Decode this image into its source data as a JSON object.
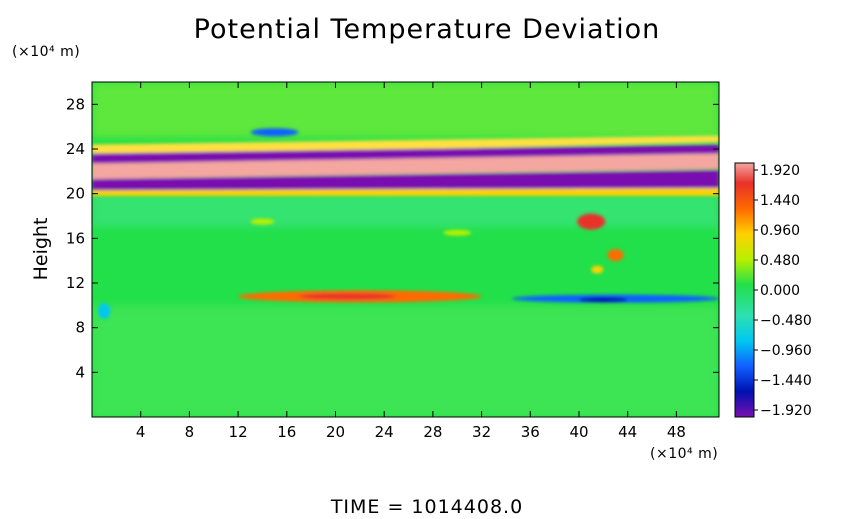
{
  "chart_data": {
    "type": "heatmap",
    "title": "Potential Temperature Deviation",
    "ylabel": "Height",
    "xlabel": "",
    "x_unit": "(×10⁴ m)",
    "y_unit": "(×10⁴ m)",
    "xlim": [
      0,
      51.5
    ],
    "ylim": [
      0,
      30
    ],
    "x_ticks": [
      "4",
      "8",
      "12",
      "16",
      "20",
      "24",
      "28",
      "32",
      "36",
      "40",
      "44",
      "48"
    ],
    "y_ticks": [
      "4",
      "8",
      "12",
      "16",
      "20",
      "24",
      "28"
    ],
    "colorbar": {
      "labels": [
        "1.920",
        "1.440",
        "0.960",
        "0.480",
        "0.000",
        "−0.480",
        "−0.960",
        "−1.440",
        "−1.920"
      ],
      "range": [
        -1.92,
        1.92
      ]
    },
    "features": [
      {
        "name": "positive band",
        "value": 1.92,
        "x": [
          0,
          51.5
        ],
        "y": [
          21.0,
          22.8
        ]
      },
      {
        "name": "negative band",
        "value": -1.92,
        "x": [
          0,
          51.5
        ],
        "y": [
          20.4,
          21.0
        ]
      },
      {
        "name": "negative band",
        "value": -1.92,
        "x": [
          0,
          51.5
        ],
        "y": [
          22.8,
          23.5
        ]
      },
      {
        "name": "warm anomaly",
        "value": 1.2,
        "x": [
          15,
          32
        ],
        "y": [
          10.3,
          11.3
        ]
      },
      {
        "name": "cold anomaly",
        "value": -1.2,
        "x": [
          36,
          51.5
        ],
        "y": [
          10.3,
          11.0
        ]
      },
      {
        "name": "warm patches",
        "value": 1.5,
        "x": [
          39,
          44
        ],
        "y": [
          12,
          18
        ]
      }
    ],
    "background_value": 0.0
  },
  "footer": {
    "time_text": "TIME  =  1014408.0"
  }
}
